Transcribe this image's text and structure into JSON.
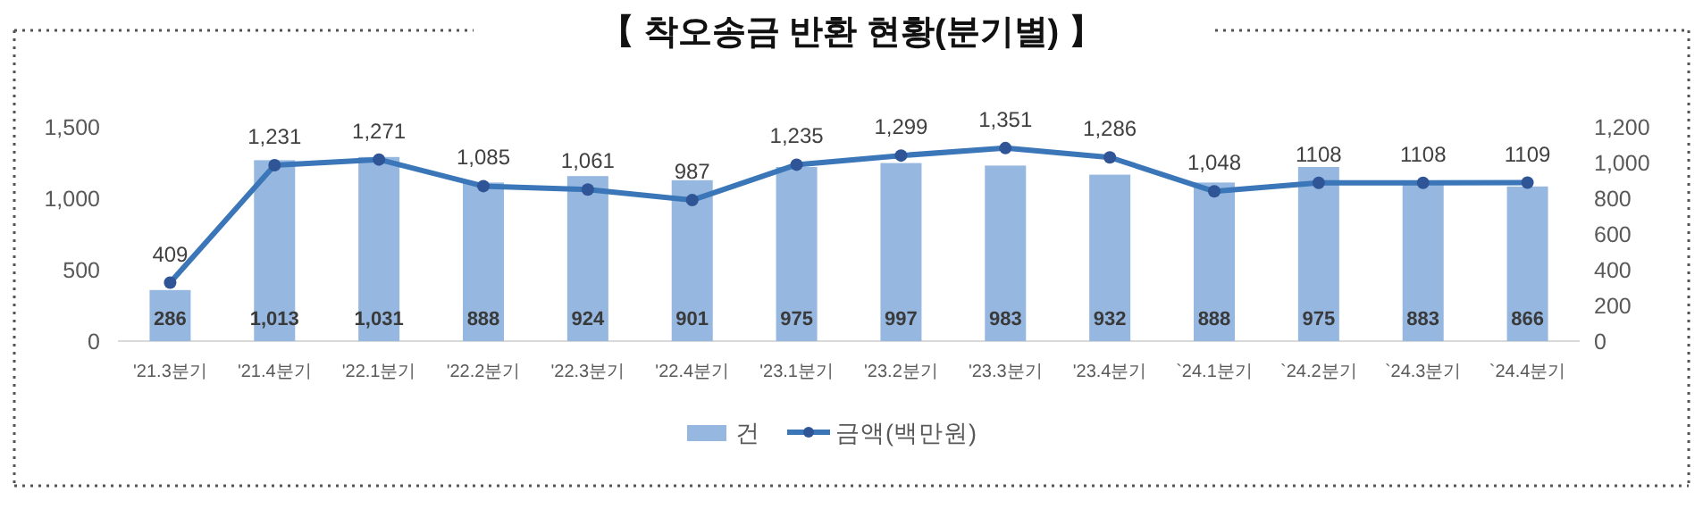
{
  "chart_data": {
    "type": "bar",
    "title": "【 착오송금 반환 현황(분기별) 】",
    "categories": [
      "'21.3분기",
      "'21.4분기",
      "'22.1분기",
      "'22.2분기",
      "'22.3분기",
      "'22.4분기",
      "'23.1분기",
      "'23.2분기",
      "'23.3분기",
      "'23.4분기",
      "`24.1분기",
      "`24.2분기",
      "`24.3분기",
      "`24.4분기"
    ],
    "series": [
      {
        "name": "건",
        "axis": "y2",
        "color": "#95b7e0",
        "values": [
          286,
          1013,
          1031,
          888,
          924,
          901,
          975,
          997,
          983,
          932,
          888,
          975,
          883,
          866
        ],
        "value_labels": [
          "286",
          "1,013",
          "1,031",
          "888",
          "924",
          "901",
          "975",
          "997",
          "983",
          "932",
          "888",
          "975",
          "883",
          "866"
        ]
      },
      {
        "name": "금액(백만원)",
        "type": "line",
        "color": "#3a76b8",
        "values": [
          409,
          1231,
          1271,
          1085,
          1061,
          987,
          1235,
          1299,
          1351,
          1286,
          1048,
          1108,
          1108,
          1109
        ],
        "value_labels": [
          "409",
          "1,231",
          "1,271",
          "1,085",
          "1,061",
          "987",
          "1,235",
          "1,299",
          "1,351",
          "1,286",
          "1,048",
          "1108",
          "1108",
          "1109"
        ]
      }
    ],
    "ylim": [
      0,
      1500
    ],
    "yticks": [
      0,
      500,
      {
        "value": 1000,
        "label": "1,000"
      },
      {
        "value": 1500,
        "label": "1,500"
      }
    ],
    "y2lim": [
      0,
      1200
    ],
    "y2ticks": [
      0,
      200,
      400,
      600,
      800,
      {
        "value": 1000,
        "label": "1,000"
      },
      {
        "value": 1200,
        "label": "1,200"
      }
    ],
    "legend": "bottom",
    "marker": "circle",
    "line_style": "solid"
  }
}
